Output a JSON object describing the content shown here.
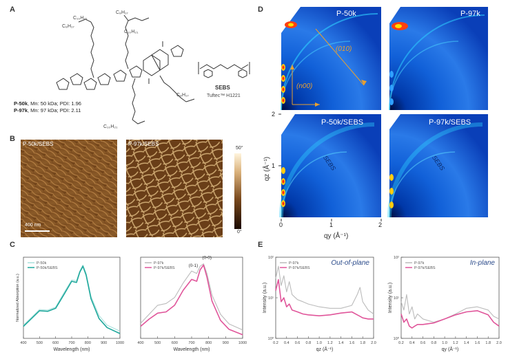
{
  "panels": {
    "a": "A",
    "b": "B",
    "c": "C",
    "d": "D",
    "e": "E"
  },
  "panel_a": {
    "sebs_title": "SEBS",
    "sebs_sub": "Tuftec™ H1221",
    "chain_labels": [
      "C₁₀H₂₁",
      "C₈H₁₇",
      "C₈H₁₇",
      "C₁₀H₂₁",
      "C₈H₁₇",
      "C₁₀H₂₁"
    ],
    "p50k_name": "P-50k",
    "p50k_info": ", Mn: 50 kDa; PDI: 1.96",
    "p97k_name": "P-97k",
    "p97k_info": ", Mn: 97 kDa; PDI: 2.11"
  },
  "panel_b": {
    "left_label": "P-50k/SEBS",
    "right_label": "P-97k/SEBS",
    "scalebar": "400 nm",
    "colorbar_max": "50°",
    "colorbar_min": "0°"
  },
  "panel_d": {
    "tiles": [
      "P-50k",
      "P-97k",
      "P-50k/SEBS",
      "P-97k/SEBS"
    ],
    "ann_010": "(010)",
    "ann_n00": "(n00)",
    "sebs_ring": "SEBS",
    "ylabel": "qz (Å⁻¹)",
    "xlabel": "qy (Å⁻¹)",
    "xticks": [
      "0",
      "1",
      "2"
    ],
    "yticks": [
      "2",
      "1"
    ]
  },
  "chart_data": [
    {
      "type": "line",
      "panel": "C-left",
      "xlabel": "Wavelength (nm)",
      "ylabel": "Normalized Absorption (a.u.)",
      "xlim": [
        400,
        1000
      ],
      "xticks": [
        "400",
        "500",
        "600",
        "700",
        "800",
        "900",
        "1000"
      ],
      "x": [
        400,
        450,
        500,
        550,
        600,
        650,
        700,
        730,
        750,
        770,
        790,
        820,
        870,
        920,
        1000
      ],
      "series": [
        {
          "name": "P-50k",
          "color": "#a8e0dc",
          "values": [
            0.22,
            0.35,
            0.48,
            0.47,
            0.52,
            0.75,
            0.97,
            0.96,
            1.12,
            1.22,
            1.08,
            0.7,
            0.38,
            0.22,
            0.12
          ]
        },
        {
          "name": "P-50k/SEBS",
          "color": "#1fa89c",
          "values": [
            0.2,
            0.33,
            0.46,
            0.45,
            0.5,
            0.72,
            0.95,
            0.93,
            1.1,
            1.2,
            1.05,
            0.66,
            0.33,
            0.18,
            0.08
          ]
        }
      ]
    },
    {
      "type": "line",
      "panel": "C-right",
      "xlabel": "Wavelength (nm)",
      "xlim": [
        400,
        1000
      ],
      "xticks": [
        "400",
        "500",
        "600",
        "700",
        "800",
        "900",
        "1000"
      ],
      "annotations": [
        "(0-1)",
        "(0-0)"
      ],
      "x": [
        400,
        450,
        500,
        550,
        600,
        650,
        700,
        730,
        750,
        770,
        790,
        820,
        870,
        920,
        1000
      ],
      "series": [
        {
          "name": "P-97k",
          "color": "#bbbbbb",
          "values": [
            0.25,
            0.4,
            0.55,
            0.58,
            0.68,
            0.92,
            1.12,
            1.08,
            1.2,
            1.24,
            1.08,
            0.72,
            0.4,
            0.24,
            0.14
          ]
        },
        {
          "name": "P-97k/SEBS",
          "color": "#e0559a",
          "values": [
            0.2,
            0.32,
            0.42,
            0.44,
            0.55,
            0.8,
            0.98,
            0.95,
            1.14,
            1.22,
            1.02,
            0.62,
            0.3,
            0.15,
            0.06
          ]
        }
      ]
    },
    {
      "type": "line",
      "panel": "E-left",
      "title": "Out-of-plane",
      "xlabel": "qz (Å⁻¹)",
      "ylabel": "Intensity (a.u.)",
      "ylog": true,
      "ylim": [
        1,
        100
      ],
      "yticks": [
        "10²",
        "10¹",
        "10⁰"
      ],
      "xlim": [
        0.2,
        2.0
      ],
      "xticks": [
        "0.2",
        "0.4",
        "0.6",
        "0.8",
        "1.0",
        "1.2",
        "1.4",
        "1.6",
        "1.8",
        "2.0"
      ],
      "x": [
        0.2,
        0.25,
        0.3,
        0.35,
        0.4,
        0.45,
        0.5,
        0.6,
        0.7,
        0.8,
        1.0,
        1.2,
        1.4,
        1.6,
        1.7,
        1.75,
        1.8,
        1.9,
        2.0
      ],
      "series": [
        {
          "name": "P-97k",
          "color": "#bbbbbb",
          "values": [
            30,
            60,
            20,
            35,
            14,
            25,
            12,
            9,
            8,
            7,
            6,
            5.5,
            5.5,
            6.5,
            12,
            18,
            8,
            5,
            4
          ]
        },
        {
          "name": "P-97k/SEBS",
          "color": "#e0559a",
          "values": [
            15,
            28,
            8,
            10,
            6,
            7,
            5,
            4.5,
            4,
            3.8,
            3.6,
            3.8,
            4.2,
            4.5,
            3.8,
            3.5,
            3.2,
            3,
            3
          ]
        }
      ]
    },
    {
      "type": "line",
      "panel": "E-right",
      "title": "In-plane",
      "xlabel": "qy (Å⁻¹)",
      "ylabel": "Intensity (a.u.)",
      "ylog": true,
      "ylim": [
        1,
        100
      ],
      "yticks": [
        "10²",
        "10¹",
        "10⁰"
      ],
      "xlim": [
        0.2,
        2.0
      ],
      "xticks": [
        "0.2",
        "0.4",
        "0.6",
        "0.8",
        "1.0",
        "1.2",
        "1.4",
        "1.6",
        "1.8",
        "2.0"
      ],
      "x": [
        0.2,
        0.25,
        0.3,
        0.35,
        0.4,
        0.45,
        0.5,
        0.6,
        0.8,
        1.0,
        1.2,
        1.4,
        1.6,
        1.8,
        1.9,
        2.0
      ],
      "series": [
        {
          "name": "P-97k",
          "color": "#bbbbbb",
          "values": [
            8,
            5,
            12,
            4,
            6,
            3,
            4,
            3,
            2.5,
            3,
            4,
            5.5,
            6,
            5,
            3.5,
            3
          ]
        },
        {
          "name": "P-97k/SEBS",
          "color": "#e0559a",
          "values": [
            4,
            2.5,
            3,
            2,
            1.8,
            2,
            2.2,
            2.2,
            2.4,
            3,
            3.8,
            4.5,
            4.8,
            3.8,
            2.5,
            2
          ]
        }
      ]
    }
  ]
}
